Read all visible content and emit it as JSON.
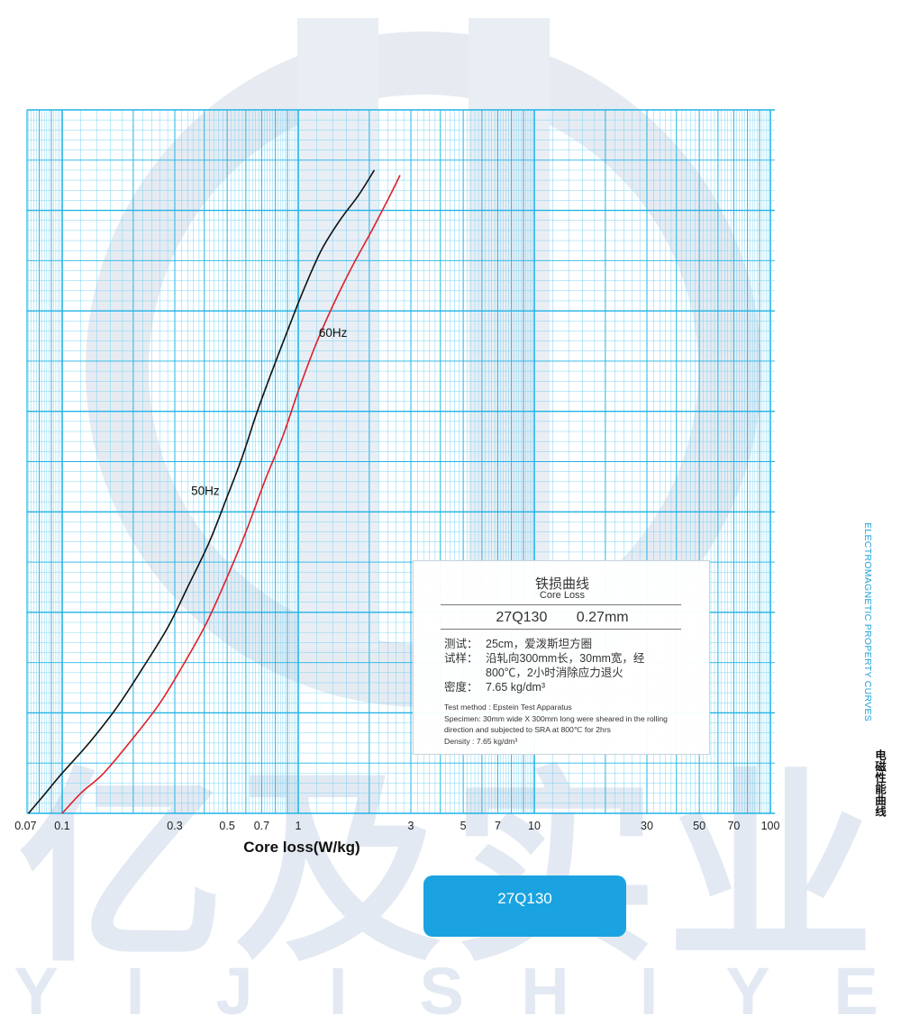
{
  "colors": {
    "grid": "#22b3e6",
    "grid_minor": "#6fd0f2",
    "curve_50hz": "#111111",
    "curve_60hz": "#e0202a",
    "accent": "#1aa3e0",
    "watermark": "#e3e9f2"
  },
  "watermark": {
    "brand_chars": "亿及实业",
    "letters": [
      "Y",
      "I",
      "J",
      "I",
      "S",
      "H",
      "I",
      "Y",
      "E"
    ]
  },
  "side_label": {
    "english": "ELECTROMAGNETIC PROPERTY CURVES",
    "chinese": "电磁性能曲线"
  },
  "info_box": {
    "title": "铁损曲线",
    "subtitle": "Core Loss",
    "grade": "27Q130",
    "thickness": "0.27mm",
    "cn_lines": [
      {
        "label": "测试：",
        "text": "25cm，爱泼斯坦方圈"
      },
      {
        "label": "试样：",
        "text": "沿轧向300mm长，30mm宽，经"
      },
      {
        "label": "",
        "text": "800℃，2小时消除应力退火"
      },
      {
        "label": "密度：",
        "text": "7.65 kg/dm³"
      }
    ],
    "en_lines": [
      "Test method : Epstein Test Apparatus",
      "Specimen: 30mm wide X 300mm long were sheared in the rolling direction and subjected to SRA at 800℃ for 2hrs",
      "Density : 7.65 kg/dm³"
    ]
  },
  "grade_button": {
    "label": "27Q130"
  },
  "chart_data": {
    "type": "line",
    "xlabel": "Core loss(W/kg)",
    "ylabel": "",
    "x_scale": "log",
    "xlim": [
      0.07,
      100
    ],
    "ylim": [
      0.6,
      2.0
    ],
    "x_tick_labels": [
      "0.07",
      "0.1",
      "0.3",
      "0.5",
      "0.7",
      "1",
      "3",
      "5",
      "7",
      "10",
      "30",
      "50",
      "70",
      "100"
    ],
    "x_tick_values": [
      0.07,
      0.1,
      0.3,
      0.5,
      0.7,
      1,
      3,
      5,
      7,
      10,
      30,
      50,
      70,
      100
    ],
    "grid": true,
    "series": [
      {
        "name": "50Hz",
        "x": [
          0.072,
          0.085,
          0.1,
          0.13,
          0.17,
          0.22,
          0.28,
          0.34,
          0.42,
          0.5,
          0.58,
          0.66,
          0.76,
          0.9,
          1.05,
          1.25,
          1.5,
          1.8,
          2.1
        ],
        "y": [
          0.6,
          0.64,
          0.68,
          0.74,
          0.81,
          0.89,
          0.97,
          1.05,
          1.14,
          1.23,
          1.31,
          1.39,
          1.47,
          1.56,
          1.64,
          1.72,
          1.78,
          1.83,
          1.88
        ]
      },
      {
        "name": "60Hz",
        "x": [
          0.1,
          0.12,
          0.15,
          0.2,
          0.26,
          0.33,
          0.41,
          0.5,
          0.6,
          0.72,
          0.86,
          1.0,
          1.18,
          1.4,
          1.7,
          2.05,
          2.45,
          2.7
        ],
        "y": [
          0.6,
          0.64,
          0.68,
          0.75,
          0.82,
          0.9,
          0.98,
          1.07,
          1.16,
          1.26,
          1.35,
          1.44,
          1.53,
          1.61,
          1.69,
          1.76,
          1.83,
          1.87
        ]
      }
    ]
  }
}
